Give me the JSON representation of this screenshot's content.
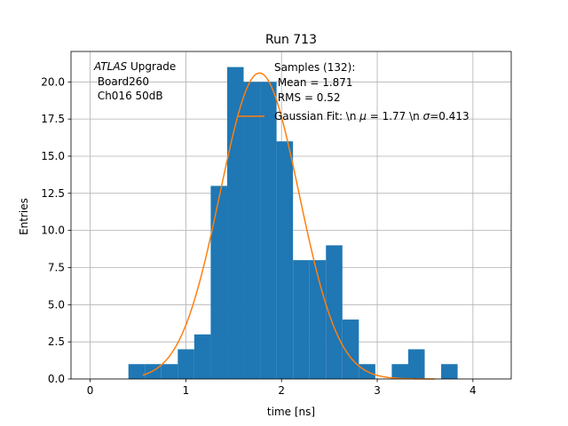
{
  "chart_data": {
    "type": "bar",
    "title": "Run 713",
    "xlabel": "time [ns]",
    "ylabel": "Entries",
    "xlim": [
      -0.2,
      4.4
    ],
    "ylim": [
      0,
      22.05
    ],
    "grid": true,
    "xticks": [
      0,
      1,
      2,
      3,
      4
    ],
    "yticks": [
      0.0,
      2.5,
      5.0,
      7.5,
      10.0,
      12.5,
      15.0,
      17.5,
      20.0
    ],
    "xtick_labels": [
      "0",
      "1",
      "2",
      "3",
      "4"
    ],
    "ytick_labels": [
      "0.0",
      "2.5",
      "5.0",
      "7.5",
      "10.0",
      "12.5",
      "15.0",
      "17.5",
      "20.0"
    ],
    "histogram": {
      "bin_width": 0.172,
      "bins": [
        {
          "x0": 0.4,
          "count": 1
        },
        {
          "x0": 0.572,
          "count": 1
        },
        {
          "x0": 0.744,
          "count": 1
        },
        {
          "x0": 0.916,
          "count": 2
        },
        {
          "x0": 1.088,
          "count": 3
        },
        {
          "x0": 1.26,
          "count": 13
        },
        {
          "x0": 1.432,
          "count": 21
        },
        {
          "x0": 1.604,
          "count": 20
        },
        {
          "x0": 1.776,
          "count": 20
        },
        {
          "x0": 1.948,
          "count": 16
        },
        {
          "x0": 2.12,
          "count": 8
        },
        {
          "x0": 2.292,
          "count": 8
        },
        {
          "x0": 2.464,
          "count": 9
        },
        {
          "x0": 2.636,
          "count": 4
        },
        {
          "x0": 2.808,
          "count": 1
        },
        {
          "x0": 2.98,
          "count": 0
        },
        {
          "x0": 3.152,
          "count": 1
        },
        {
          "x0": 3.324,
          "count": 2
        },
        {
          "x0": 3.496,
          "count": 0
        },
        {
          "x0": 3.668,
          "count": 1
        }
      ],
      "color": "#1f77b4"
    },
    "gaussian_fit": {
      "mu": 1.77,
      "sigma": 0.413,
      "amplitude": 20.6,
      "x_range": [
        0.55,
        3.6
      ],
      "color": "#ff7f0e"
    },
    "annotation": {
      "italic": "ATLAS",
      "rest": " Upgrade",
      "line2": " Board260",
      "line3": " Ch016 50dB"
    },
    "legend": {
      "location": "top-right",
      "line1": "Samples (132):",
      "line2": " Mean = 1.871",
      "line3": " RMS = 0.52",
      "fit_text_a": "Gaussian Fit: \\n ",
      "fit_mu_symbol": "μ",
      "fit_text_b": " = 1.77 \\n ",
      "fit_sigma_symbol": "σ",
      "fit_text_c": "=0.413"
    }
  }
}
